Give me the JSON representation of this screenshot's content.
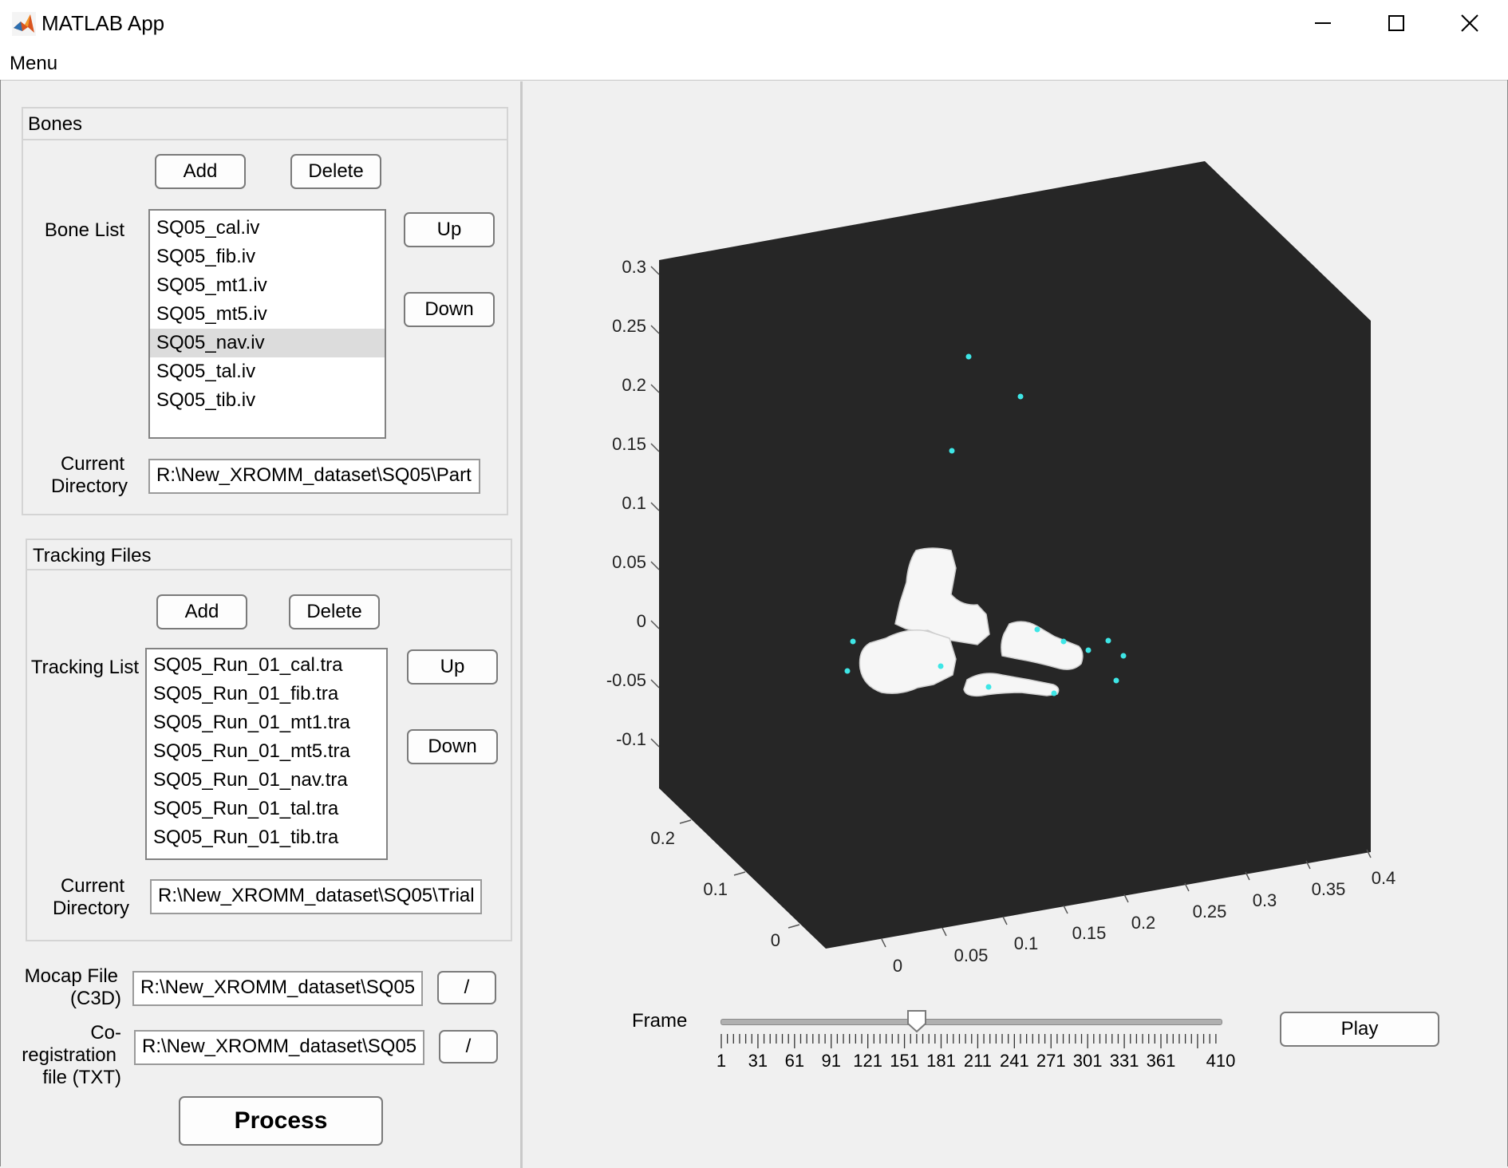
{
  "window": {
    "title": "MATLAB App"
  },
  "menubar": {
    "menu": "Menu"
  },
  "bones": {
    "panel_title": "Bones",
    "add": "Add",
    "delete": "Delete",
    "list_label": "Bone List",
    "items": [
      "SQ05_cal.iv",
      "SQ05_fib.iv",
      "SQ05_mt1.iv",
      "SQ05_mt5.iv",
      "SQ05_nav.iv",
      "SQ05_tal.iv",
      "SQ05_tib.iv"
    ],
    "selected_item": "SQ05_nav.iv",
    "up": "Up",
    "down": "Down",
    "dir_label_1": "Current",
    "dir_label_2": "Directory",
    "dir_value": "R:\\New_XROMM_dataset\\SQ05\\Part"
  },
  "tracking": {
    "panel_title": "Tracking Files",
    "add": "Add",
    "delete": "Delete",
    "list_label": "Tracking List",
    "items": [
      "SQ05_Run_01_cal.tra",
      "SQ05_Run_01_fib.tra",
      "SQ05_Run_01_mt1.tra",
      "SQ05_Run_01_mt5.tra",
      "SQ05_Run_01_nav.tra",
      "SQ05_Run_01_tal.tra",
      "SQ05_Run_01_tib.tra"
    ],
    "up": "Up",
    "down": "Down",
    "dir_label_1": "Current",
    "dir_label_2": "Directory",
    "dir_value": "R:\\New_XROMM_dataset\\SQ05\\Trial"
  },
  "mocap": {
    "label_1": "Mocap File",
    "label_2": "(C3D)",
    "value": "R:\\New_XROMM_dataset\\SQ05",
    "browse": "/"
  },
  "coreg": {
    "label_1": "Co-",
    "label_2": "registration",
    "label_3": "file (TXT)",
    "value": "R:\\New_XROMM_dataset\\SQ05",
    "browse": "/"
  },
  "process": "Process",
  "plot": {
    "background": "#262626",
    "marker_color": "#3ee6e6",
    "z_ticks": [
      "0.3",
      "0.25",
      "0.2",
      "0.15",
      "0.1",
      "0.05",
      "0",
      "-0.05",
      "-0.1"
    ],
    "y_ticks": [
      "0.2",
      "0.1",
      "0"
    ],
    "x_ticks": [
      "0",
      "0.05",
      "0.1",
      "0.15",
      "0.2",
      "0.25",
      "0.3",
      "0.35",
      "0.4"
    ]
  },
  "frame": {
    "label": "Frame",
    "value": 151,
    "min": 1,
    "max": 410,
    "tick_labels": [
      "1",
      "31",
      "61",
      "91",
      "121",
      "151",
      "181",
      "211",
      "241",
      "271",
      "301",
      "331",
      "361",
      "410"
    ],
    "play": "Play"
  }
}
